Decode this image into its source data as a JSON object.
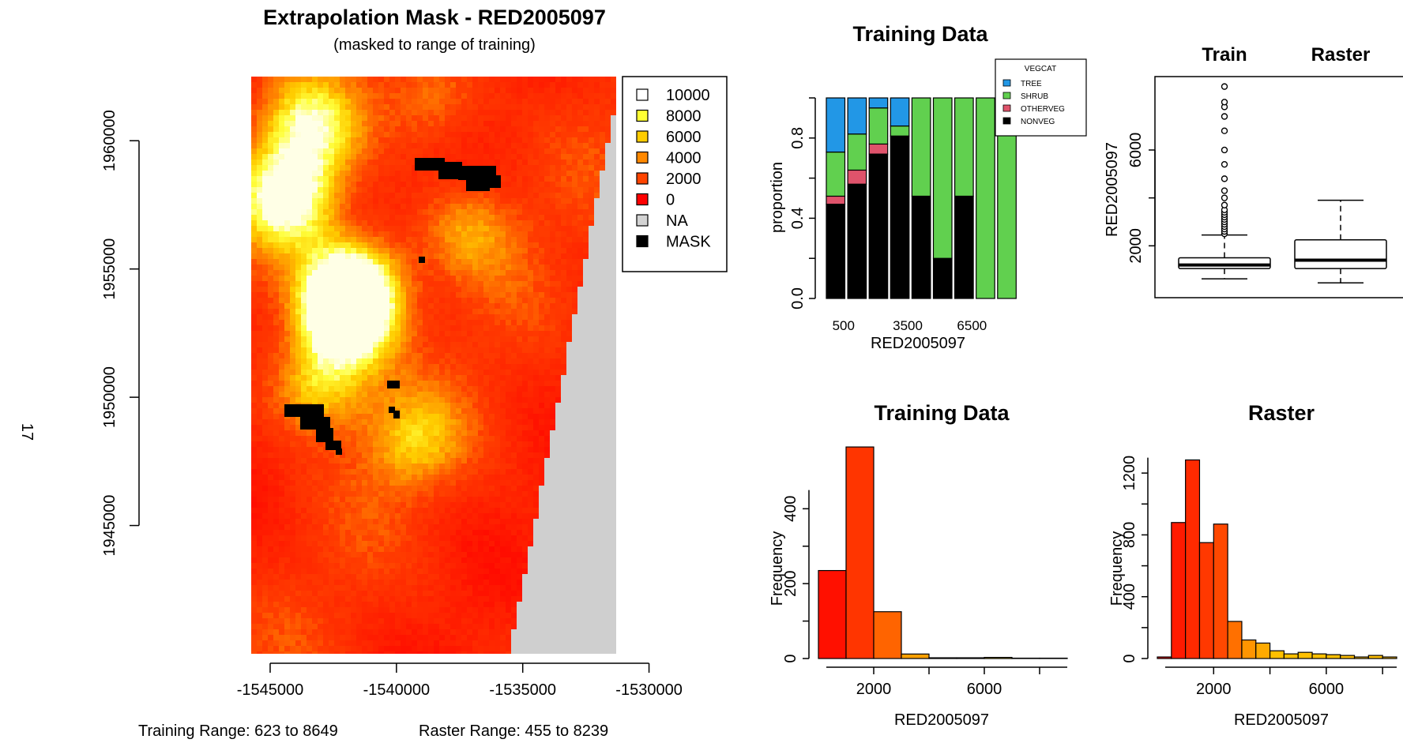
{
  "page_number": "17",
  "map_panel": {
    "title": "Extrapolation Mask - RED2005097",
    "subtitle": "(masked to range of training)",
    "training_range_text": "Training Range: 623 to 8649",
    "raster_range_text": "Raster Range: 455 to 8239"
  },
  "chart_data": [
    {
      "type": "heatmap",
      "title": "Extrapolation Mask - RED2005097",
      "subtitle": "(masked to range of training)",
      "x_ticks": [
        -1545000,
        -1540000,
        -1535000,
        -1530000
      ],
      "y_ticks": [
        1945000,
        1950000,
        1955000,
        1960000
      ],
      "xlim": [
        -1545750,
        -1531300
      ],
      "ylim": [
        1940000,
        1962500
      ],
      "grid": false,
      "legend": {
        "position": "top-right",
        "entries": [
          {
            "label": "10000",
            "color": "#FFFFFF"
          },
          {
            "label": "8000",
            "color": "#FFFF33"
          },
          {
            "label": "6000",
            "color": "#FFCC00"
          },
          {
            "label": "4000",
            "color": "#FF8800"
          },
          {
            "label": "2000",
            "color": "#FF4400"
          },
          {
            "label": "0",
            "color": "#FF0000"
          },
          {
            "label": "NA",
            "color": "#D3D3D3"
          },
          {
            "label": "MASK",
            "color": "#000000"
          }
        ]
      }
    },
    {
      "type": "bar",
      "title": "Training Data",
      "xlabel": "RED2005097",
      "ylabel": "proportion",
      "x_tick_labels": [
        "500",
        "3500",
        "6500"
      ],
      "y_ticks": [
        0.0,
        0.4,
        0.8
      ],
      "ylim": [
        0,
        1
      ],
      "legend": {
        "title": "VEGCAT",
        "position": "top-right"
      },
      "series": [
        {
          "name": "NONVEG",
          "color": "#000000",
          "values": [
            0.47,
            0.57,
            0.72,
            0.81,
            0.51,
            0.2,
            0.51,
            0,
            0
          ]
        },
        {
          "name": "OTHERVEG",
          "color": "#DF536B",
          "values": [
            0.04,
            0.07,
            0.05,
            0,
            0,
            0,
            0,
            0,
            0
          ]
        },
        {
          "name": "SHRUB",
          "color": "#61D04F",
          "values": [
            0.22,
            0.18,
            0.18,
            0.05,
            0.49,
            0.8,
            0.49,
            1.0,
            1.0
          ]
        },
        {
          "name": "TREE",
          "color": "#2297E6",
          "values": [
            0.27,
            0.18,
            0.05,
            0.14,
            0,
            0,
            0,
            0,
            0
          ]
        }
      ]
    },
    {
      "type": "box",
      "xlabel": "",
      "ylabel": "RED2005097",
      "y_ticks": [
        2000,
        6000
      ],
      "ylim": [
        455,
        8649
      ],
      "boxes": [
        {
          "name": "Train",
          "min": 623,
          "q1": 1050,
          "median": 1200,
          "q3": 1500,
          "whisker_high": 2450,
          "outliers": [
            2500,
            2600,
            2700,
            2800,
            2900,
            3000,
            3100,
            3200,
            3300,
            3400,
            3500,
            3700,
            4000,
            4300,
            4800,
            5400,
            6000,
            6800,
            7400,
            7800,
            8000,
            8649
          ]
        },
        {
          "name": "Raster",
          "min": 455,
          "q1": 1050,
          "median": 1400,
          "q3": 2250,
          "whisker_high": 3900,
          "outliers": []
        }
      ]
    },
    {
      "type": "bar",
      "title": "Training Data",
      "xlabel": "RED2005097",
      "ylabel": "Frequency",
      "x_ticks": [
        2000,
        6000
      ],
      "y_ticks": [
        0,
        200,
        400
      ],
      "bin_edges": [
        0,
        1000,
        2000,
        3000,
        4000,
        5000,
        6000,
        7000,
        8000,
        9000
      ],
      "values": [
        235,
        565,
        125,
        12,
        2,
        2,
        3,
        1,
        1
      ]
    },
    {
      "type": "bar",
      "title": "Raster",
      "xlabel": "RED2005097",
      "ylabel": "Frequency",
      "x_ticks": [
        2000,
        6000
      ],
      "y_ticks": [
        0,
        400,
        800,
        1200
      ],
      "bin_edges": [
        0,
        500,
        1000,
        1500,
        2000,
        2500,
        3000,
        3500,
        4000,
        4500,
        5000,
        5500,
        6000,
        6500,
        7000,
        7500,
        8000,
        8500
      ],
      "values": [
        10,
        880,
        1285,
        750,
        870,
        240,
        120,
        100,
        50,
        30,
        40,
        30,
        25,
        20,
        10,
        20,
        10
      ]
    }
  ]
}
